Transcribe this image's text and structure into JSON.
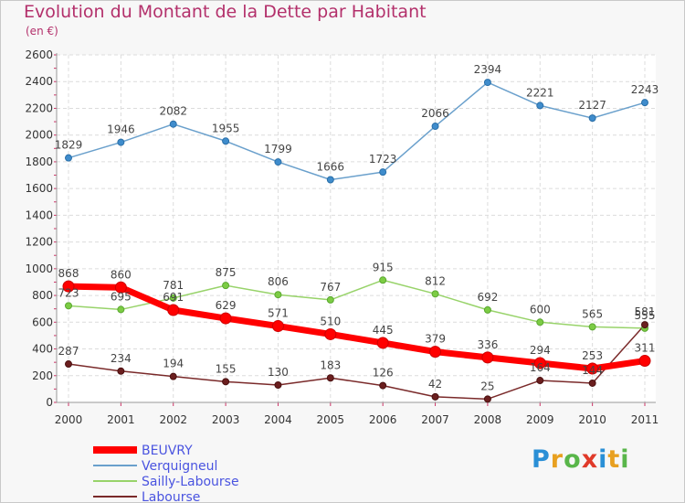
{
  "chart_data": {
    "type": "line",
    "title": "Evolution du Montant de la Dette par Habitant",
    "unit_label": "(en €)",
    "x": [
      "2000",
      "2001",
      "2002",
      "2003",
      "2004",
      "2005",
      "2006",
      "2007",
      "2008",
      "2009",
      "2010",
      "2011"
    ],
    "ylim": [
      0,
      2600
    ],
    "yticks": [
      0,
      200,
      400,
      600,
      800,
      1000,
      1200,
      1400,
      1600,
      1800,
      2000,
      2200,
      2400,
      2600
    ],
    "grid": true,
    "series": [
      {
        "name": "BEUVRY",
        "color": "#ff0000",
        "values": [
          868,
          860,
          691,
          629,
          571,
          510,
          445,
          379,
          336,
          294,
          253,
          311
        ]
      },
      {
        "name": "Verquigneul",
        "color": "#6aa0cc",
        "values": [
          1829,
          1946,
          2082,
          1955,
          1799,
          1666,
          1723,
          2066,
          2394,
          2221,
          2127,
          2243
        ]
      },
      {
        "name": "Sailly-Labourse",
        "color": "#98d36a",
        "values": [
          723,
          695,
          781,
          875,
          806,
          767,
          915,
          812,
          692,
          600,
          565,
          555
        ]
      },
      {
        "name": "Labourse",
        "color": "#7a2a2a",
        "values": [
          287,
          234,
          194,
          155,
          130,
          183,
          126,
          42,
          25,
          164,
          144,
          581
        ]
      }
    ]
  },
  "logo": {
    "text": "Proxiti"
  }
}
